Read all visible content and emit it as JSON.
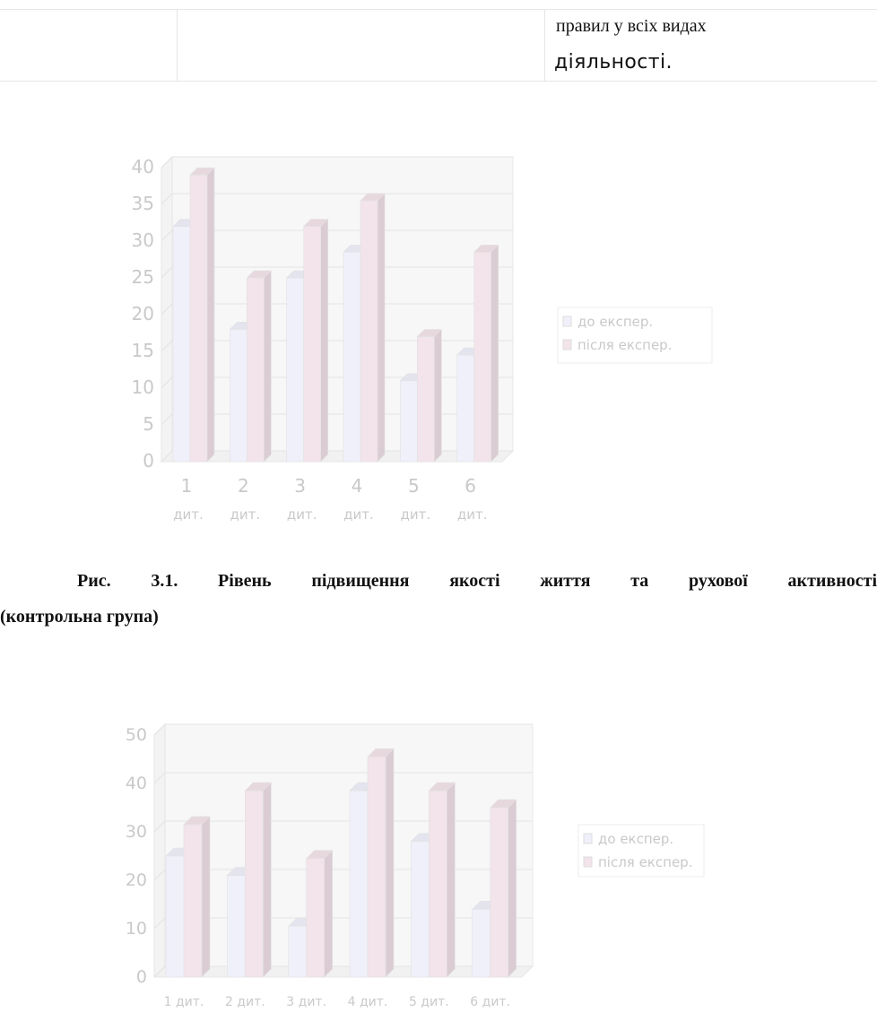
{
  "table_fragment": {
    "line1": "правил у всіх видах",
    "line2": "діяльності."
  },
  "figure1": {
    "caption_line1": "Рис. 3.1. Рівень підвищення якості життя та рухової активності",
    "caption_line2": "(контрольна група)",
    "chart_data": {
      "type": "bar",
      "categories": [
        "1 дит.",
        "2 дит.",
        "3 дит.",
        "4 дит.",
        "5 дит.",
        "6 дит."
      ],
      "category_lines": [
        [
          "1",
          "дит."
        ],
        [
          "2",
          "дит."
        ],
        [
          "3",
          "дит."
        ],
        [
          "4",
          "дит."
        ],
        [
          "5",
          "дит."
        ],
        [
          "6",
          "дит."
        ]
      ],
      "series": [
        {
          "name": "до експер.",
          "values": [
            32,
            18,
            25,
            28.5,
            11,
            14.5
          ],
          "color": "#f0f0fb"
        },
        {
          "name": "після експер.",
          "values": [
            39,
            25,
            32,
            35.5,
            17,
            28.5
          ],
          "color": "#f3e3ea"
        }
      ],
      "ylim": [
        0,
        40
      ],
      "yticks": [
        0,
        5,
        10,
        15,
        20,
        25,
        30,
        35,
        40
      ],
      "grid": true,
      "legend": "right",
      "title": "",
      "xlabel": "",
      "ylabel": ""
    }
  },
  "figure2": {
    "chart_data": {
      "type": "bar",
      "categories": [
        "1 дит.",
        "2 дит.",
        "3 дит.",
        "4 дит.",
        "5 дит.",
        "6 дит."
      ],
      "series": [
        {
          "name": "до експер.",
          "values": [
            25,
            21,
            10.5,
            38.5,
            28,
            14
          ],
          "color": "#f0f0fb"
        },
        {
          "name": "після експер.",
          "values": [
            31.5,
            38.5,
            24.5,
            45.5,
            38.5,
            35
          ],
          "color": "#f3e3ea"
        }
      ],
      "ylim": [
        0,
        50
      ],
      "yticks": [
        0,
        10,
        20,
        30,
        40,
        50
      ],
      "grid": true,
      "legend": "right",
      "title": "",
      "xlabel": "",
      "ylabel": ""
    }
  }
}
